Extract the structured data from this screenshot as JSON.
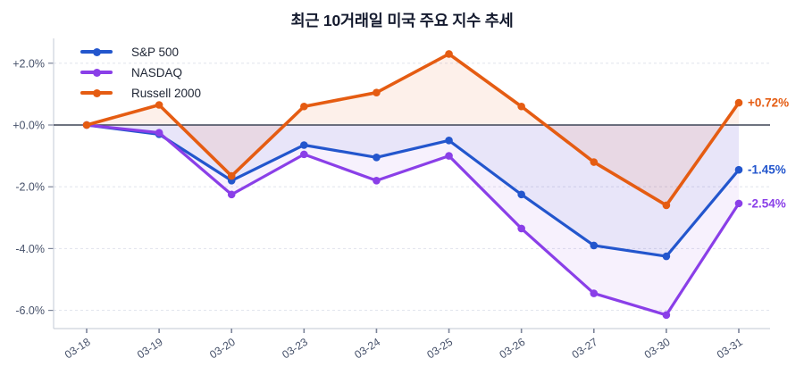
{
  "chart_data": {
    "type": "line",
    "title": "최근 10거래일 미국 주요 지수 추세",
    "x": [
      "03-18",
      "03-19",
      "03-20",
      "03-23",
      "03-24",
      "03-25",
      "03-26",
      "03-27",
      "03-30",
      "03-31"
    ],
    "series": [
      {
        "name": "S&P 500",
        "color": "#2356cd",
        "end_label": "-1.45%",
        "values": [
          0.0,
          -0.3,
          -1.8,
          -0.65,
          -1.05,
          -0.5,
          -2.25,
          -3.9,
          -4.25,
          -1.45
        ]
      },
      {
        "name": "NASDAQ",
        "color": "#8a3fe8",
        "end_label": "-2.54%",
        "values": [
          0.0,
          -0.25,
          -2.25,
          -0.95,
          -1.8,
          -1.0,
          -3.35,
          -5.45,
          -6.15,
          -2.54
        ]
      },
      {
        "name": "Russell 2000",
        "color": "#e55c12",
        "end_label": "+0.72%",
        "values": [
          0.0,
          0.65,
          -1.65,
          0.6,
          1.05,
          2.3,
          0.6,
          -1.2,
          -2.6,
          0.72
        ]
      }
    ],
    "y_ticks": [
      {
        "label": "+2.0%",
        "value": 2
      },
      {
        "label": "+0.0%",
        "value": 0
      },
      {
        "label": "-2.0%",
        "value": -2
      },
      {
        "label": "-4.0%",
        "value": -4
      },
      {
        "label": "-6.0%",
        "value": -6
      }
    ],
    "ylim": [
      -6.6,
      2.8
    ],
    "unit": "%",
    "grid": "horizontal-dashed",
    "zero_line": true,
    "legend_position": "top-left"
  },
  "colors": {
    "background": "#ffffff",
    "title": "#141a2e",
    "tick_label": "#46516a",
    "axis_line": "#cdd2dc",
    "tick_mark": "#7c8499",
    "gridline": "#e3e6ee",
    "zero_line": "#3e4557"
  }
}
